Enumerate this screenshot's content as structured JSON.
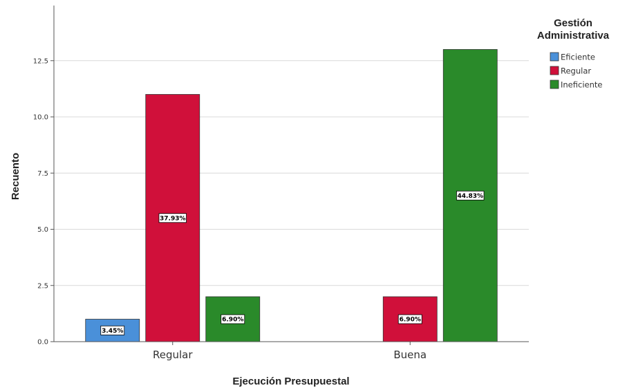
{
  "chart_data": {
    "type": "bar",
    "xlabel": "Ejecución Presupuestal",
    "ylabel": "Recuento",
    "ylim": [
      0,
      15
    ],
    "yticks": [
      "0.0",
      "2.5",
      "5.0",
      "7.5",
      "10.0",
      "12.5"
    ],
    "grid": true,
    "categories": [
      "Regular",
      "Buena"
    ],
    "legend": {
      "title_lines": [
        "Gestión",
        "Administrativa"
      ],
      "placement": "top-right"
    },
    "series": [
      {
        "name": "Eficiente",
        "color": "#4a90d9",
        "values": [
          1,
          null
        ],
        "labels": [
          "3.45%",
          ""
        ]
      },
      {
        "name": "Regular",
        "color": "#d0103a",
        "values": [
          11,
          2
        ],
        "labels": [
          "37.93%",
          "6.90%"
        ]
      },
      {
        "name": "Ineficiente",
        "color": "#2a8a2a",
        "values": [
          2,
          13
        ],
        "labels": [
          "6.90%",
          "44.83%"
        ]
      }
    ]
  }
}
